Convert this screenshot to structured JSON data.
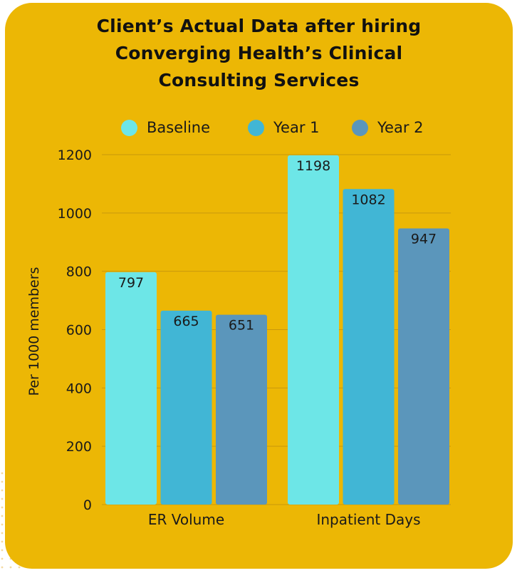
{
  "chart_data": {
    "type": "bar",
    "title_lines": [
      "Client’s Actual Data after hiring",
      "Converging Health’s Clinical",
      "Consulting Services"
    ],
    "ylabel": "Per 1000 members",
    "xlabel": "",
    "categories": [
      "ER Volume",
      "Inpatient Days"
    ],
    "series": [
      {
        "name": "Baseline",
        "color": "#6de6e7",
        "values": [
          797,
          1198
        ]
      },
      {
        "name": "Year 1",
        "color": "#41b6d5",
        "values": [
          665,
          1082
        ]
      },
      {
        "name": "Year 2",
        "color": "#5b96bb",
        "values": [
          651,
          947
        ]
      }
    ],
    "ylim": [
      0,
      1200
    ],
    "yticks": [
      "0",
      "200",
      "400",
      "600",
      "800",
      "1000",
      "1200"
    ],
    "data_labels": [
      [
        "797",
        "1198"
      ],
      [
        "665",
        "1082"
      ],
      [
        "651",
        "947"
      ]
    ],
    "grid": true,
    "legend_position": "top",
    "colors": {
      "background": "#ecb705",
      "gridline": "#c9990c",
      "text": "#1a1a1a"
    }
  }
}
